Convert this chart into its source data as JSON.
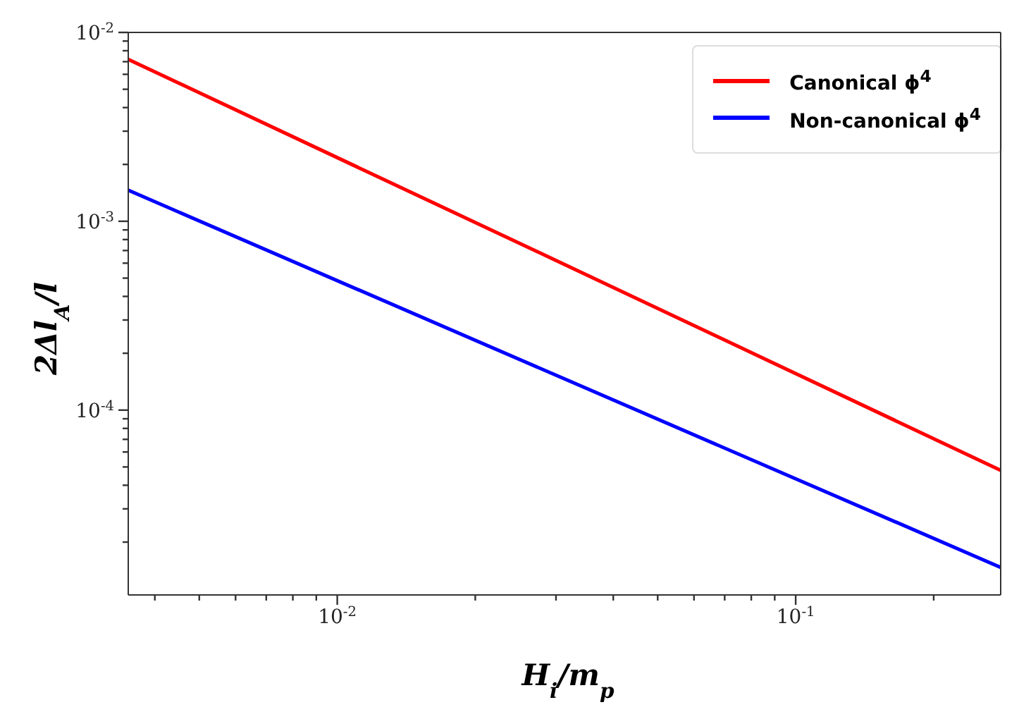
{
  "chart_data": {
    "type": "line",
    "xlabel": "H$_{i}$/m$_{p}$",
    "ylabel": "2Δl$_{A}$/l",
    "log": "xy",
    "grid": false,
    "legend": "top right",
    "marker": "none",
    "line_style": "solid",
    "xlim": [
      0.0035,
      0.28
    ],
    "ylim": [
      1.05e-05,
      0.01
    ],
    "xticks": [
      {
        "value": 0.004,
        "label": null
      },
      {
        "value": 0.005,
        "label": null
      },
      {
        "value": 0.006,
        "label": null
      },
      {
        "value": 0.007,
        "label": null
      },
      {
        "value": 0.008,
        "label": null
      },
      {
        "value": 0.009,
        "label": null
      },
      {
        "value": 0.01,
        "label": "10$^{-2}$"
      },
      {
        "value": 0.02,
        "label": null
      },
      {
        "value": 0.03,
        "label": null
      },
      {
        "value": 0.04,
        "label": null
      },
      {
        "value": 0.05,
        "label": null
      },
      {
        "value": 0.06,
        "label": null
      },
      {
        "value": 0.07,
        "label": null
      },
      {
        "value": 0.08,
        "label": null
      },
      {
        "value": 0.09,
        "label": null
      },
      {
        "value": 0.1,
        "label": "10$^{-1}$"
      },
      {
        "value": 0.2,
        "label": null
      }
    ],
    "yticks": [
      {
        "value": 2e-05,
        "label": null
      },
      {
        "value": 3e-05,
        "label": null
      },
      {
        "value": 4e-05,
        "label": null
      },
      {
        "value": 5e-05,
        "label": null
      },
      {
        "value": 6e-05,
        "label": null
      },
      {
        "value": 7e-05,
        "label": null
      },
      {
        "value": 8e-05,
        "label": null
      },
      {
        "value": 9e-05,
        "label": null
      },
      {
        "value": 0.0001,
        "label": "10$^{-4}$"
      },
      {
        "value": 0.0002,
        "label": null
      },
      {
        "value": 0.0003,
        "label": null
      },
      {
        "value": 0.0004,
        "label": null
      },
      {
        "value": 0.0005,
        "label": null
      },
      {
        "value": 0.0006,
        "label": null
      },
      {
        "value": 0.0007,
        "label": null
      },
      {
        "value": 0.0008,
        "label": null
      },
      {
        "value": 0.0009,
        "label": null
      },
      {
        "value": 0.001,
        "label": "10$^{-3}$"
      },
      {
        "value": 0.002,
        "label": null
      },
      {
        "value": 0.003,
        "label": null
      },
      {
        "value": 0.004,
        "label": null
      },
      {
        "value": 0.005,
        "label": null
      },
      {
        "value": 0.006,
        "label": null
      },
      {
        "value": 0.007,
        "label": null
      },
      {
        "value": 0.008,
        "label": null
      },
      {
        "value": 0.009,
        "label": null
      },
      {
        "value": 0.01,
        "label": "10$^{-2}$"
      }
    ],
    "x": [
      0.0035,
      0.03,
      0.28
    ],
    "series": [
      {
        "name": "Canonical ϕ$^{4}$",
        "color": "#ff0000",
        "values": [
          0.0072,
          0.00062,
          4.8e-05
        ]
      },
      {
        "name": "Non-canonical ϕ$^{4}$",
        "color": "#0000ff",
        "values": [
          0.00146,
          0.000153,
          1.47e-05
        ]
      }
    ]
  }
}
